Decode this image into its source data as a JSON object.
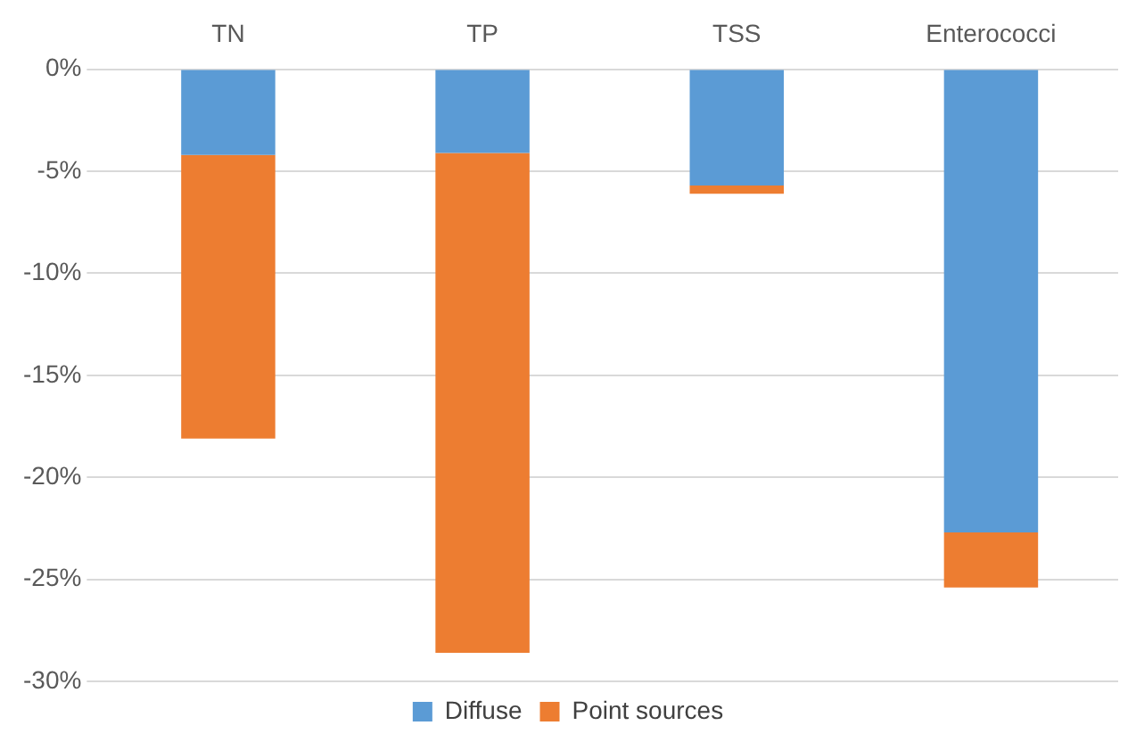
{
  "chart_data": {
    "type": "bar",
    "stacked": true,
    "categories": [
      "TN",
      "TP",
      "TSS",
      "Enterococci"
    ],
    "series": [
      {
        "name": "Diffuse",
        "color": "#5b9bd5",
        "values": [
          -4.2,
          -4.1,
          -5.7,
          -22.7
        ]
      },
      {
        "name": "Point sources",
        "color": "#ed7d31",
        "values": [
          -13.9,
          -24.5,
          -0.4,
          -2.7
        ]
      }
    ],
    "ylim": [
      -30,
      0
    ],
    "yticks": [
      {
        "value": 0,
        "label": "0%"
      },
      {
        "value": -5,
        "label": "-5%"
      },
      {
        "value": -10,
        "label": "-10%"
      },
      {
        "value": -15,
        "label": "-15%"
      },
      {
        "value": -20,
        "label": "-20%"
      },
      {
        "value": -25,
        "label": "-25%"
      },
      {
        "value": -30,
        "label": "-30%"
      }
    ],
    "grid": "y",
    "legend": "bottom"
  }
}
